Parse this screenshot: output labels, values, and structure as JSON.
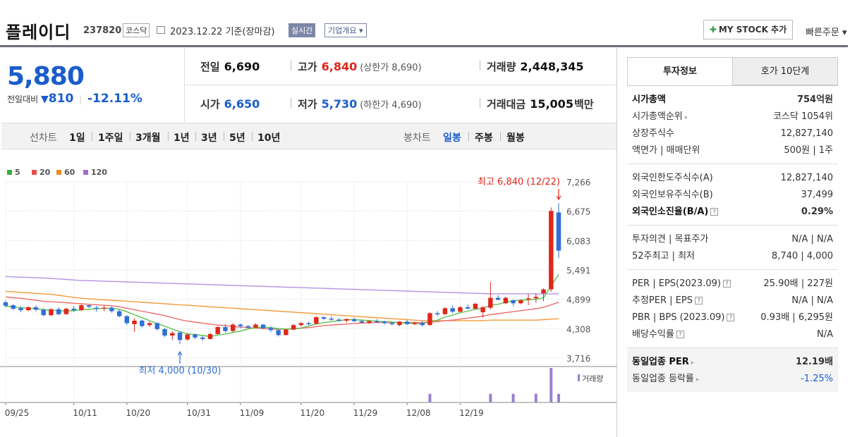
{
  "header": {
    "name": "플레이디",
    "code": "237820",
    "market": "코스닥",
    "date": "2023.12.22  기준(장마감)",
    "realtime": "실시간",
    "overview": "기업개요 ▾",
    "my_stock": "MY STOCK 추가",
    "quick_order": "빠른주문 ▾"
  },
  "price": {
    "current": "5,880",
    "change_label": "전일대비",
    "change": "810",
    "change_pct": "-12.11%"
  },
  "stats": {
    "prev_label": "전일",
    "prev": "6,690",
    "high_label": "고가",
    "high": "6,840",
    "upper_limit": "(상한가 8,690)",
    "volume_label": "거래량",
    "volume": "2,448,345",
    "open_label": "시가",
    "open": "6,650",
    "low_label": "저가",
    "low": "5,730",
    "lower_limit": "(하한가 4,690)",
    "amount_label": "거래대금",
    "amount": "15,005",
    "amount_unit": "백만"
  },
  "periods": {
    "line_label": "선차트",
    "line_opts": [
      "1일",
      "1주일",
      "3개월",
      "1년",
      "3년",
      "5년",
      "10년"
    ],
    "candle_label": "봉차트",
    "candle_opts": [
      "일봉",
      "주봉",
      "월봉"
    ],
    "active": "일봉"
  },
  "chart_data": {
    "type": "candlestick",
    "legend": [
      {
        "name": "5",
        "color": "#3fae3f"
      },
      {
        "name": "20",
        "color": "#e84c4c"
      },
      {
        "name": "60",
        "color": "#f08a24"
      },
      {
        "name": "120",
        "color": "#9e6fcf"
      }
    ],
    "y_ticks": [
      "7,266",
      "6,675",
      "6,083",
      "5,491",
      "4,899",
      "4,308",
      "3,716"
    ],
    "ylim": [
      3716,
      7266
    ],
    "x_ticks": [
      "09/25",
      "10/11",
      "10/20",
      "10/31",
      "11/09",
      "11/20",
      "11/29",
      "12/08",
      "12/19"
    ],
    "x_tick_index": [
      0,
      9,
      16,
      24,
      31,
      39,
      46,
      53,
      60
    ],
    "high_annotation": "최고 6,840 (12/22)",
    "low_annotation": "최저 4,000 (10/30)",
    "volume_label": "거래량",
    "candles": [
      [
        4840,
        4880,
        4740,
        4770
      ],
      [
        4780,
        4800,
        4680,
        4710
      ],
      [
        4720,
        4760,
        4640,
        4680
      ],
      [
        4680,
        4760,
        4660,
        4740
      ],
      [
        4740,
        4780,
        4660,
        4690
      ],
      [
        4690,
        4720,
        4560,
        4580
      ],
      [
        4580,
        4720,
        4560,
        4700
      ],
      [
        4700,
        4740,
        4580,
        4600
      ],
      [
        4600,
        4730,
        4590,
        4710
      ],
      [
        4710,
        4760,
        4650,
        4680
      ],
      [
        4680,
        4800,
        4670,
        4780
      ],
      [
        4780,
        4790,
        4720,
        4750
      ],
      [
        4730,
        4770,
        4650,
        4710
      ],
      [
        4710,
        4780,
        4660,
        4730
      ],
      [
        4730,
        4760,
        4630,
        4660
      ],
      [
        4660,
        4700,
        4540,
        4560
      ],
      [
        4560,
        4580,
        4380,
        4420
      ],
      [
        4400,
        4520,
        4240,
        4470
      ],
      [
        4470,
        4490,
        4330,
        4360
      ],
      [
        4380,
        4450,
        4340,
        4420
      ],
      [
        4420,
        4430,
        4270,
        4300
      ],
      [
        4300,
        4320,
        4140,
        4170
      ],
      [
        4170,
        4260,
        4080,
        4220
      ],
      [
        4230,
        4250,
        4000,
        4080
      ],
      [
        4090,
        4220,
        4070,
        4190
      ],
      [
        4190,
        4210,
        4100,
        4130
      ],
      [
        4130,
        4160,
        4060,
        4100
      ],
      [
        4100,
        4220,
        4090,
        4200
      ],
      [
        4200,
        4360,
        4190,
        4340
      ],
      [
        4340,
        4400,
        4230,
        4260
      ],
      [
        4260,
        4420,
        4240,
        4390
      ],
      [
        4390,
        4410,
        4320,
        4360
      ],
      [
        4360,
        4380,
        4310,
        4330
      ],
      [
        4330,
        4420,
        4320,
        4390
      ],
      [
        4390,
        4400,
        4300,
        4320
      ],
      [
        4320,
        4360,
        4240,
        4280
      ],
      [
        4280,
        4300,
        4150,
        4180
      ],
      [
        4180,
        4300,
        4170,
        4290
      ],
      [
        4290,
        4400,
        4280,
        4380
      ],
      [
        4380,
        4440,
        4350,
        4420
      ],
      [
        4420,
        4450,
        4380,
        4410
      ],
      [
        4410,
        4560,
        4400,
        4540
      ],
      [
        4540,
        4550,
        4480,
        4510
      ],
      [
        4510,
        4560,
        4470,
        4490
      ],
      [
        4490,
        4520,
        4450,
        4470
      ],
      [
        4470,
        4520,
        4430,
        4500
      ],
      [
        4500,
        4530,
        4440,
        4460
      ],
      [
        4460,
        4490,
        4410,
        4430
      ],
      [
        4420,
        4480,
        4400,
        4460
      ],
      [
        4460,
        4500,
        4420,
        4450
      ],
      [
        4450,
        4470,
        4390,
        4420
      ],
      [
        4420,
        4450,
        4370,
        4400
      ],
      [
        4380,
        4460,
        4360,
        4450
      ],
      [
        4450,
        4480,
        4380,
        4400
      ],
      [
        4400,
        4450,
        4380,
        4420
      ],
      [
        4420,
        4460,
        4350,
        4380
      ],
      [
        4380,
        4640,
        4370,
        4620
      ],
      [
        4620,
        4660,
        4560,
        4600
      ],
      [
        4600,
        4740,
        4580,
        4720
      ],
      [
        4720,
        4780,
        4620,
        4650
      ],
      [
        4650,
        4760,
        4640,
        4740
      ],
      [
        4740,
        4800,
        4700,
        4710
      ],
      [
        4710,
        4830,
        4690,
        4810
      ],
      [
        4640,
        4760,
        4530,
        4740
      ],
      [
        4730,
        5250,
        4700,
        4930
      ],
      [
        4930,
        4980,
        4880,
        4890
      ],
      [
        4820,
        4950,
        4800,
        4930
      ],
      [
        4880,
        4900,
        4770,
        4820
      ],
      [
        4820,
        4900,
        4800,
        4880
      ],
      [
        4900,
        5000,
        4780,
        4920
      ],
      [
        4920,
        5020,
        4830,
        4950
      ],
      [
        5020,
        5120,
        4860,
        5100
      ],
      [
        5100,
        6750,
        5050,
        6680
      ],
      [
        6650,
        6840,
        5730,
        5880
      ]
    ],
    "ma5": [
      4760,
      4750,
      4730,
      4720,
      4710,
      4690,
      4680,
      4670,
      4660,
      4670,
      4690,
      4700,
      4710,
      4720,
      4720,
      4700,
      4650,
      4590,
      4530,
      4470,
      4410,
      4360,
      4300,
      4250,
      4200,
      4190,
      4170,
      4150,
      4180,
      4200,
      4230,
      4260,
      4300,
      4330,
      4340,
      4330,
      4310,
      4300,
      4300,
      4320,
      4360,
      4400,
      4430,
      4450,
      4470,
      4490,
      4490,
      4480,
      4470,
      4460,
      4450,
      4440,
      4430,
      4420,
      4410,
      4410,
      4440,
      4480,
      4540,
      4580,
      4630,
      4660,
      4700,
      4720,
      4780,
      4800,
      4840,
      4870,
      4880,
      4890,
      4900,
      4930,
      5170,
      5400
    ],
    "ma20": [
      4950,
      4930,
      4920,
      4900,
      4880,
      4860,
      4850,
      4840,
      4830,
      4820,
      4810,
      4800,
      4790,
      4780,
      4770,
      4750,
      4720,
      4690,
      4660,
      4630,
      4600,
      4570,
      4530,
      4490,
      4460,
      4440,
      4420,
      4400,
      4380,
      4370,
      4350,
      4340,
      4330,
      4320,
      4310,
      4300,
      4300,
      4300,
      4310,
      4320,
      4330,
      4350,
      4370,
      4380,
      4390,
      4400,
      4410,
      4420,
      4430,
      4430,
      4430,
      4430,
      4430,
      4430,
      4430,
      4430,
      4440,
      4450,
      4470,
      4480,
      4500,
      4520,
      4540,
      4560,
      4590,
      4610,
      4630,
      4650,
      4670,
      4690,
      4710,
      4740,
      4790,
      4840
    ],
    "ma60": [
      5060,
      5050,
      5040,
      5030,
      5020,
      5010,
      5000,
      4980,
      4960,
      4940,
      4920,
      4910,
      4900,
      4890,
      4880,
      4870,
      4860,
      4850,
      4840,
      4830,
      4820,
      4810,
      4800,
      4790,
      4780,
      4770,
      4760,
      4750,
      4740,
      4730,
      4720,
      4710,
      4700,
      4690,
      4680,
      4670,
      4660,
      4650,
      4640,
      4630,
      4620,
      4610,
      4600,
      4590,
      4580,
      4570,
      4560,
      4550,
      4540,
      4530,
      4520,
      4510,
      4500,
      4490,
      4480,
      4470,
      4470,
      4470,
      4470,
      4470,
      4470,
      4470,
      4470,
      4470,
      4480,
      4480,
      4480,
      4480,
      4480,
      4480,
      4480,
      4490,
      4500,
      4510
    ],
    "ma120": [
      5360,
      5350,
      5345,
      5340,
      5335,
      5330,
      5320,
      5310,
      5300,
      5290,
      5280,
      5275,
      5270,
      5265,
      5260,
      5255,
      5250,
      5245,
      5240,
      5235,
      5230,
      5225,
      5220,
      5215,
      5210,
      5205,
      5200,
      5195,
      5190,
      5185,
      5180,
      5175,
      5170,
      5165,
      5160,
      5155,
      5150,
      5145,
      5140,
      5135,
      5130,
      5125,
      5120,
      5115,
      5110,
      5105,
      5100,
      5095,
      5090,
      5085,
      5080,
      5075,
      5070,
      5065,
      5060,
      5055,
      5050,
      5045,
      5040,
      5035,
      5030,
      5025,
      5020,
      5015,
      5010,
      5010,
      5010,
      5010,
      5010,
      5010,
      5010,
      5010,
      5010,
      5010
    ],
    "volume_highlight": [
      0,
      0,
      0,
      0,
      0,
      0,
      0,
      0,
      0,
      0,
      0,
      0,
      0,
      0,
      0,
      0,
      0,
      0,
      0,
      0,
      0,
      0,
      0,
      0,
      0,
      0,
      0,
      0,
      0,
      0,
      0,
      0,
      0,
      0,
      0,
      0,
      0,
      0,
      0,
      0,
      0,
      0,
      0,
      0,
      0,
      0,
      0,
      0,
      0,
      0,
      0,
      0,
      0,
      0,
      0,
      0,
      1,
      0,
      0,
      0,
      0,
      0,
      0,
      0,
      1,
      0,
      0,
      1,
      0,
      0,
      1,
      0,
      4,
      1
    ]
  },
  "side": {
    "tab_info": "투자정보",
    "tab_quote": "호가 10단계",
    "rows1": [
      {
        "k": "시가총액",
        "v": "754억원",
        "bold": true
      },
      {
        "k": "시가총액순위",
        "v": "코스닥 1054위",
        "arrow": true
      },
      {
        "k": "상장주식수",
        "v": "12,827,140"
      },
      {
        "k": "액면가 | 매매단위",
        "v": "500원 | 1주"
      }
    ],
    "rows2": [
      {
        "k": "외국인한도주식수(A)",
        "v": "12,827,140"
      },
      {
        "k": "외국인보유주식수(B)",
        "v": "37,499"
      },
      {
        "k": "외국인소진율(B/A)",
        "v": "0.29%",
        "bold": true,
        "q": true
      }
    ],
    "rows3": [
      {
        "k": "투자의견 | 목표주가",
        "v": "N/A | N/A"
      },
      {
        "k": "52주최고 | 최저",
        "v": "8,740 | 4,000"
      }
    ],
    "rows4": [
      {
        "k": "PER | EPS(2023.09)",
        "v": "25.90배 | 227원",
        "q": true
      },
      {
        "k": "추정PER | EPS",
        "v": "N/A | N/A",
        "q": true
      },
      {
        "k": "PBR | BPS (2023.09)",
        "v": "0.93배 | 6,295원",
        "q": true
      },
      {
        "k": "배당수익률",
        "v": "N/A",
        "q": true
      }
    ],
    "rows5": [
      {
        "k": "동일업종 PER",
        "v": "12.19배",
        "bold": true,
        "arrow": true
      },
      {
        "k": "동일업종 등락률",
        "v": "-1.25%",
        "arrow": true,
        "blue": true
      }
    ]
  }
}
